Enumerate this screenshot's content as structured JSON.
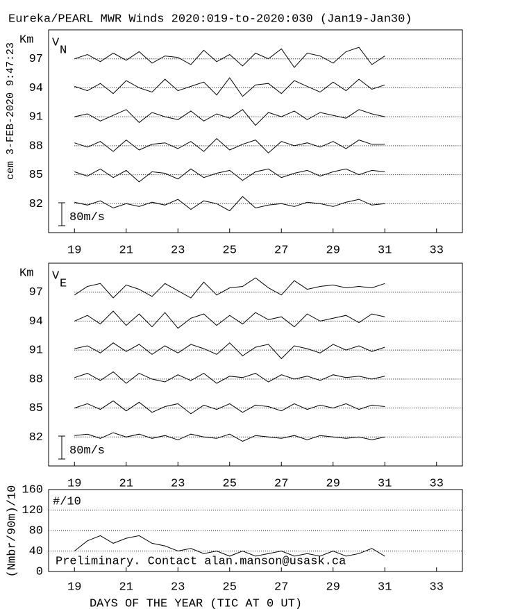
{
  "header": {
    "title": "Eureka/PEARL MWR Winds 2020:019-to-2020:030 (Jan19-Jan30)",
    "timestamp": "cem 3-FEB-2020  9:47:23"
  },
  "xlabel": "DAYS OF THE YEAR (TIC AT 0 UT)",
  "chart_data": [
    {
      "type": "wind",
      "ylabel": "Km",
      "panel_label": {
        "main": "V",
        "sub": "N"
      },
      "scale_bar": {
        "value": 80,
        "label": "80m/s"
      },
      "xlim": [
        18,
        34
      ],
      "xticks": [
        19,
        21,
        23,
        25,
        27,
        29,
        31,
        33
      ],
      "ylim": [
        79,
        100
      ],
      "yticks": [
        82,
        85,
        88,
        91,
        94,
        97
      ],
      "grid": true,
      "color": "#000000",
      "x": [
        19,
        19.5,
        20,
        20.5,
        21,
        21.5,
        22,
        22.5,
        23,
        23.5,
        24,
        24.5,
        25,
        25.5,
        26,
        26.5,
        27,
        27.5,
        28,
        28.5,
        29,
        29.5,
        30,
        30.5,
        31
      ],
      "series": [
        {
          "altitude": 97,
          "values": [
            0,
            15,
            -10,
            20,
            -5,
            25,
            -15,
            10,
            5,
            -20,
            30,
            -10,
            15,
            -25,
            20,
            0,
            35,
            -30,
            20,
            10,
            -15,
            25,
            40,
            -20,
            10
          ]
        },
        {
          "altitude": 94,
          "values": [
            5,
            -10,
            15,
            -20,
            25,
            0,
            -15,
            30,
            -10,
            5,
            20,
            -25,
            35,
            -30,
            10,
            15,
            -20,
            25,
            5,
            -15,
            20,
            -10,
            30,
            -5,
            10
          ]
        },
        {
          "altitude": 91,
          "values": [
            0,
            10,
            -15,
            5,
            25,
            -20,
            15,
            0,
            -10,
            20,
            -15,
            10,
            -5,
            25,
            -30,
            15,
            0,
            20,
            -10,
            15,
            5,
            -5,
            25,
            10,
            0
          ]
        },
        {
          "altitude": 88,
          "values": [
            10,
            -5,
            15,
            -20,
            20,
            -15,
            5,
            10,
            -10,
            15,
            -20,
            25,
            -15,
            5,
            20,
            -25,
            15,
            0,
            10,
            -5,
            15,
            -10,
            20,
            5,
            5
          ]
        },
        {
          "altitude": 85,
          "values": [
            10,
            -5,
            20,
            -10,
            15,
            -25,
            10,
            5,
            -15,
            20,
            -10,
            5,
            15,
            -20,
            10,
            20,
            -10,
            5,
            15,
            -5,
            10,
            20,
            0,
            15,
            10
          ]
        },
        {
          "altitude": 82,
          "values": [
            5,
            -5,
            10,
            -15,
            0,
            -10,
            5,
            -5,
            15,
            -20,
            10,
            0,
            -25,
            25,
            -15,
            -5,
            0,
            -10,
            5,
            0,
            -10,
            5,
            15,
            -5,
            0
          ]
        }
      ]
    },
    {
      "type": "wind",
      "ylabel": "Km",
      "panel_label": {
        "main": "V",
        "sub": "E"
      },
      "scale_bar": {
        "value": 80,
        "label": "80m/s"
      },
      "xlim": [
        18,
        34
      ],
      "xticks": [
        19,
        21,
        23,
        25,
        27,
        29,
        31,
        33
      ],
      "ylim": [
        79,
        100
      ],
      "yticks": [
        82,
        85,
        88,
        91,
        94,
        97
      ],
      "grid": true,
      "color": "#000000",
      "x": [
        19,
        19.5,
        20,
        20.5,
        21,
        21.5,
        22,
        22.5,
        23,
        23.5,
        24,
        24.5,
        25,
        25.5,
        26,
        26.5,
        27,
        27.5,
        28,
        28.5,
        29,
        29.5,
        30,
        30.5,
        31
      ],
      "series": [
        {
          "altitude": 97,
          "values": [
            -10,
            20,
            30,
            -20,
            25,
            10,
            -15,
            30,
            5,
            -20,
            35,
            -10,
            15,
            20,
            50,
            15,
            -10,
            40,
            10,
            20,
            25,
            15,
            20,
            15,
            30
          ]
        },
        {
          "altitude": 94,
          "values": [
            0,
            20,
            -10,
            35,
            -15,
            25,
            -20,
            30,
            -25,
            10,
            25,
            -15,
            20,
            -10,
            30,
            5,
            15,
            -20,
            25,
            0,
            10,
            20,
            -5,
            25,
            15
          ]
        },
        {
          "altitude": 91,
          "values": [
            5,
            15,
            -10,
            25,
            -5,
            20,
            -15,
            15,
            -10,
            20,
            5,
            -15,
            25,
            -20,
            10,
            20,
            -30,
            15,
            5,
            -10,
            20,
            0,
            15,
            -5,
            10
          ]
        },
        {
          "altitude": 88,
          "values": [
            5,
            20,
            -5,
            25,
            -15,
            20,
            0,
            -10,
            15,
            -5,
            20,
            -15,
            10,
            5,
            20,
            -10,
            15,
            0,
            10,
            -5,
            15,
            5,
            10,
            0,
            10
          ]
        },
        {
          "altitude": 85,
          "values": [
            0,
            15,
            -5,
            25,
            -10,
            20,
            -15,
            5,
            15,
            -20,
            10,
            -5,
            15,
            -15,
            10,
            5,
            -10,
            15,
            -5,
            10,
            0,
            15,
            -5,
            10,
            5
          ]
        },
        {
          "altitude": 82,
          "values": [
            5,
            10,
            -5,
            15,
            0,
            10,
            -5,
            5,
            -10,
            10,
            0,
            -5,
            10,
            -15,
            5,
            0,
            -5,
            5,
            -10,
            5,
            0,
            -5,
            0,
            -10,
            0
          ]
        }
      ]
    },
    {
      "type": "line",
      "ylabel": "(Nmbr/90m)/10",
      "panel_label": "#/10",
      "annotation": "Preliminary. Contact alan.manson@usask.ca",
      "xlim": [
        18,
        34
      ],
      "xticks": [
        19,
        21,
        23,
        25,
        27,
        29,
        31,
        33
      ],
      "ylim": [
        0,
        160
      ],
      "yticks": [
        0,
        40,
        80,
        120,
        160
      ],
      "grid": true,
      "color": "#000000",
      "x": [
        19,
        19.5,
        20,
        20.5,
        21,
        21.5,
        22,
        22.5,
        23,
        23.5,
        24,
        24.5,
        25,
        25.5,
        26,
        26.5,
        27,
        27.5,
        28,
        28.5,
        29,
        29.5,
        30,
        30.5,
        31
      ],
      "values": [
        40,
        60,
        70,
        55,
        65,
        70,
        55,
        50,
        40,
        45,
        35,
        40,
        30,
        40,
        30,
        35,
        40,
        30,
        35,
        30,
        40,
        30,
        35,
        45,
        30
      ]
    }
  ]
}
